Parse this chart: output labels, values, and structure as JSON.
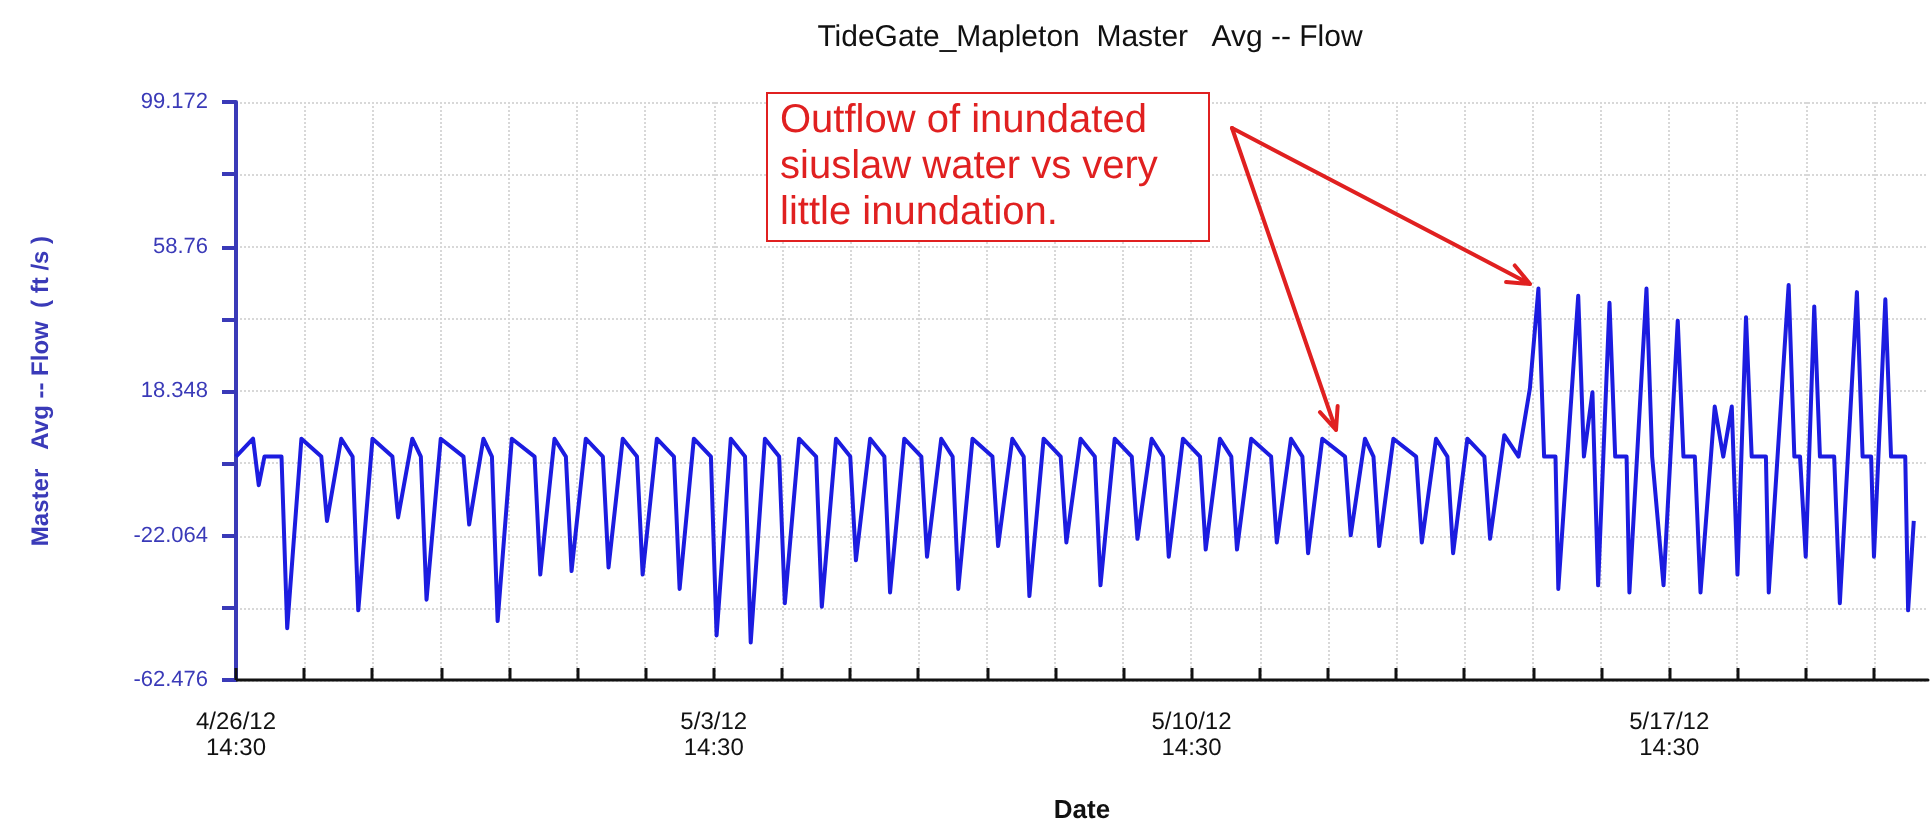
{
  "chart_data": {
    "type": "line",
    "title": "TideGate_Mapleton  Master   Avg -- Flow",
    "xlabel": "Date",
    "ylabel": "Master   Avg -- Flow  ( ft /s )",
    "color": "#1c1ce0",
    "grid": true,
    "annotations": [
      "Outflow of inundated siuslaw water vs very little inundation."
    ],
    "xlim": [
      "--04-26T14:30",
      "--05-21T09:30"
    ],
    "xticks": [
      {
        "value": "--04-26T14:30",
        "label": "4/26/12\n14:30"
      },
      {
        "value": "--04-27T14:30",
        "label": null
      },
      {
        "value": "--04-28T14:30",
        "label": null
      },
      {
        "value": "--04-29T14:30",
        "label": null
      },
      {
        "value": "--04-30T14:30",
        "label": null
      },
      {
        "value": "--05-01T14:30",
        "label": null
      },
      {
        "value": "--05-02T14:30",
        "label": null
      },
      {
        "value": "--05-03T14:30",
        "label": "5/3/12\n14:30"
      },
      {
        "value": "--05-04T14:30",
        "label": null
      },
      {
        "value": "--05-05T14:30",
        "label": null
      },
      {
        "value": "--05-06T14:30",
        "label": null
      },
      {
        "value": "--05-07T14:30",
        "label": null
      },
      {
        "value": "--05-08T14:30",
        "label": null
      },
      {
        "value": "--05-09T14:30",
        "label": null
      },
      {
        "value": "--05-10T14:30",
        "label": "5/10/12\n14:30"
      },
      {
        "value": "--05-11T14:30",
        "label": null
      },
      {
        "value": "--05-12T14:30",
        "label": null
      },
      {
        "value": "--05-13T14:30",
        "label": null
      },
      {
        "value": "--05-14T14:30",
        "label": null
      },
      {
        "value": "--05-15T14:30",
        "label": null
      },
      {
        "value": "--05-16T14:30",
        "label": null
      },
      {
        "value": "--05-17T14:30",
        "label": "5/17/12\n14:30"
      },
      {
        "value": "--05-18T14:30",
        "label": null
      },
      {
        "value": "--05-19T14:30",
        "label": null
      },
      {
        "value": "--05-20T14:30",
        "label": null
      }
    ],
    "ylim": [
      -62.476,
      99.172
    ],
    "yticks": [
      -62.476,
      {
        "value": -42.27,
        "label": null
      },
      -22.064,
      {
        "value": -1.858,
        "label": null
      },
      18.348,
      {
        "value": 38.554,
        "label": null
      },
      58.76,
      {
        "value": 78.966,
        "label": null
      },
      99.172
    ],
    "x": [
      "--04-26T14:30",
      "--04-26T20:30",
      "--04-26T22:30",
      "--04-27T00:30",
      "--04-27T06:30",
      "--04-27T08:30",
      "--04-27T13:30",
      "--04-27T20:30",
      "--04-27T22:30",
      "--04-28T03:30",
      "--04-28T07:30",
      "--04-28T09:30",
      "--04-28T14:30",
      "--04-28T21:30",
      "--04-28T23:30",
      "--04-29T04:30",
      "--04-29T07:30",
      "--04-29T09:30",
      "--04-29T14:30",
      "--04-29T22:30",
      "--04-30T00:30",
      "--04-30T05:30",
      "--04-30T08:30",
      "--04-30T10:30",
      "--04-30T15:30",
      "--04-30T23:30",
      "--05-01T01:30",
      "--05-01T06:30",
      "--05-01T10:30",
      "--05-01T12:30",
      "--05-01T17:30",
      "--05-01T23:30",
      "--05-02T01:30",
      "--05-02T06:30",
      "--05-02T11:30",
      "--05-02T13:30",
      "--05-02T18:30",
      "--05-03T00:30",
      "--05-03T02:30",
      "--05-03T07:30",
      "--05-03T13:30",
      "--05-03T15:30",
      "--05-03T20:30",
      "--05-04T01:30",
      "--05-04T03:30",
      "--05-04T08:30",
      "--05-04T13:30",
      "--05-04T15:30",
      "--05-04T20:30",
      "--05-05T02:30",
      "--05-05T04:30",
      "--05-05T09:30",
      "--05-05T14:30",
      "--05-05T16:30",
      "--05-05T21:30",
      "--05-06T02:30",
      "--05-06T04:30",
      "--05-06T09:30",
      "--05-06T15:30",
      "--05-06T17:30",
      "--05-06T22:30",
      "--05-07T02:30",
      "--05-07T04:30",
      "--05-07T09:30",
      "--05-07T16:30",
      "--05-07T18:30",
      "--05-07T23:30",
      "--05-08T03:30",
      "--05-08T05:30",
      "--05-08T10:30",
      "--05-08T16:30",
      "--05-08T18:30",
      "--05-08T23:30",
      "--05-09T04:30",
      "--05-09T06:30",
      "--05-09T11:30",
      "--05-09T17:30",
      "--05-09T19:30",
      "--05-10T00:30",
      "--05-10T04:30",
      "--05-10T06:30",
      "--05-10T11:30",
      "--05-10T17:30",
      "--05-10T19:30",
      "--05-11T00:30",
      "--05-11T04:30",
      "--05-11T06:30",
      "--05-11T11:30",
      "--05-11T18:30",
      "--05-11T20:30",
      "--05-12T01:30",
      "--05-12T05:30",
      "--05-12T07:30",
      "--05-12T12:30",
      "--05-12T20:30",
      "--05-12T22:30",
      "--05-13T03:30",
      "--05-13T06:30",
      "--05-13T08:30",
      "--05-13T13:30",
      "--05-13T21:30",
      "--05-13T23:30",
      "--05-14T04:30",
      "--05-14T08:30",
      "--05-14T10:30",
      "--05-14T15:30",
      "--05-14T21:30",
      "--05-14T23:30",
      "--05-15T04:30",
      "--05-15T09:30",
      "--05-15T13:30",
      "--05-15T16:30",
      "--05-15T18:30",
      "--05-15T22:30",
      "--05-15T23:30",
      "--05-16T06:30",
      "--05-16T08:30",
      "--05-16T11:30",
      "--05-16T13:30",
      "--05-16T17:30",
      "--05-16T19:30",
      "--05-16T23:30",
      "--05-17T00:30",
      "--05-17T06:30",
      "--05-17T08:30",
      "--05-17T12:30",
      "--05-17T17:30",
      "--05-17T19:30",
      "--05-17T23:30",
      "--05-18T01:30",
      "--05-18T06:30",
      "--05-18T09:30",
      "--05-18T12:30",
      "--05-18T14:30",
      "--05-18T17:30",
      "--05-18T19:30",
      "--05-19T00:30",
      "--05-19T01:30",
      "--05-19T08:30",
      "--05-19T10:30",
      "--05-19T12:30",
      "--05-19T14:30",
      "--05-19T17:30",
      "--05-19T19:30",
      "--05-20T00:30",
      "--05-20T02:30",
      "--05-20T08:30",
      "--05-20T10:30",
      "--05-20T13:30",
      "--05-20T14:30",
      "--05-20T18:30",
      "--05-20T20:30",
      "--05-21T01:30",
      "--05-21T02:30",
      "--05-21T04:30"
    ],
    "values": [
      0,
      5,
      -8,
      0,
      0,
      -48,
      5,
      0,
      -18,
      5,
      0,
      -43,
      5,
      0,
      -17,
      5,
      0,
      -40,
      5,
      0,
      -19,
      5,
      0,
      -46,
      5,
      0,
      -33,
      5,
      0,
      -32,
      5,
      0,
      -31,
      5,
      0,
      -33,
      5,
      0,
      -37,
      5,
      0,
      -50,
      5,
      0,
      -52,
      5,
      0,
      -41,
      5,
      0,
      -42,
      5,
      0,
      -29,
      5,
      0,
      -38,
      5,
      0,
      -28,
      5,
      0,
      -37,
      5,
      0,
      -25,
      5,
      0,
      -39,
      5,
      0,
      -24,
      5,
      0,
      -36,
      5,
      0,
      -23,
      5,
      0,
      -28,
      5,
      0,
      -26,
      5,
      0,
      -26,
      5,
      0,
      -24,
      5,
      0,
      -27,
      5,
      0,
      -22,
      5,
      0,
      -25,
      5,
      0,
      -24,
      5,
      0,
      -27,
      5,
      0,
      -23,
      6,
      0,
      19,
      47,
      0,
      0,
      -37,
      45,
      0,
      18,
      -36,
      43,
      0,
      0,
      -38,
      47,
      0,
      -36,
      38,
      0,
      0,
      -38,
      14,
      0,
      14,
      -33,
      39,
      0,
      0,
      -38,
      48,
      0,
      0,
      -28,
      42,
      0,
      0,
      -41,
      46,
      0,
      0,
      -28,
      44,
      0,
      0,
      -43,
      -18
    ]
  }
}
